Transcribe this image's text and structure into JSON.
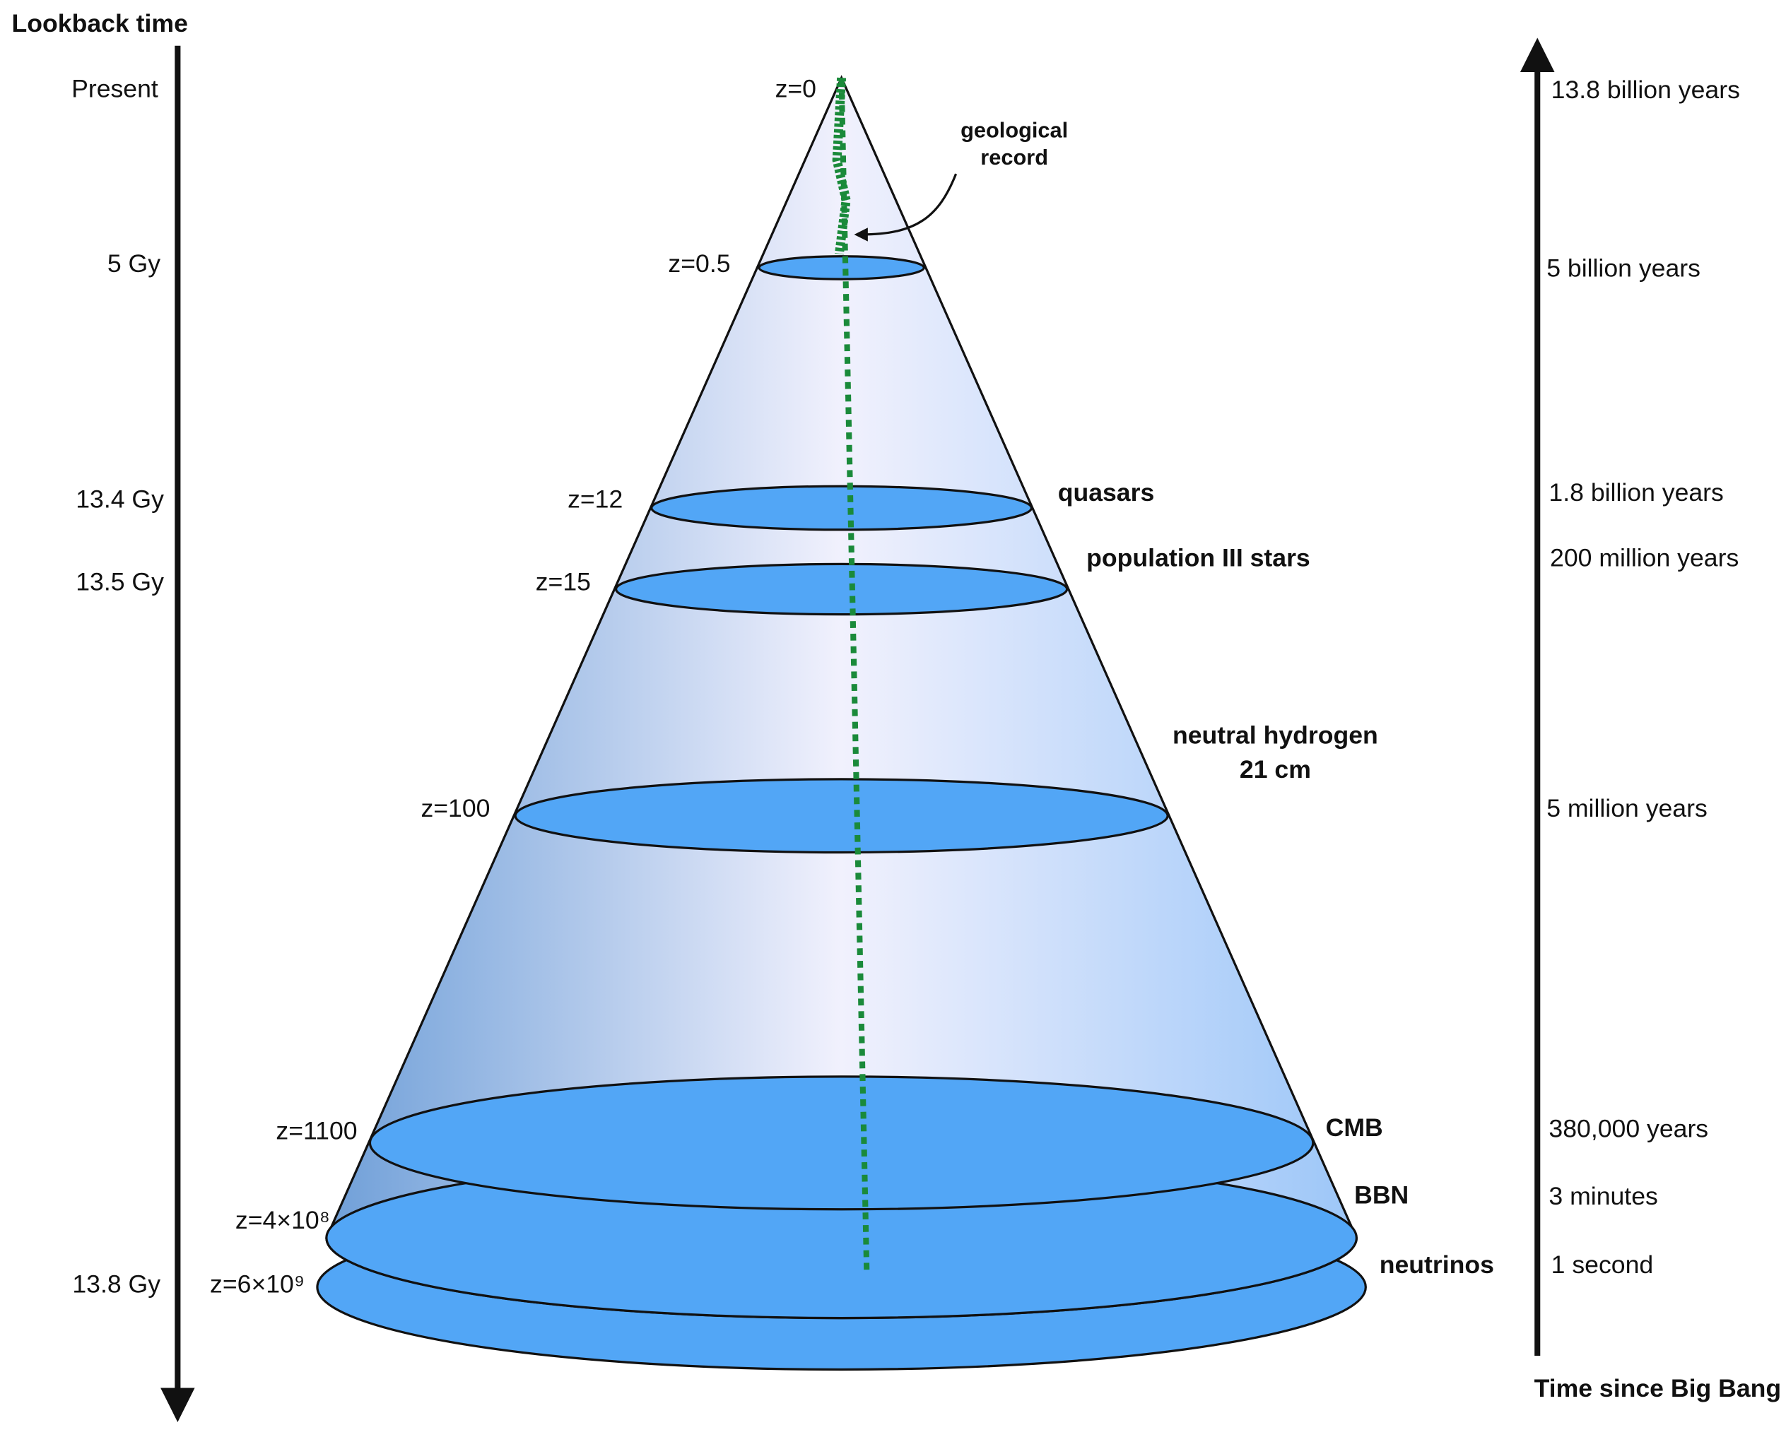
{
  "left_axis": {
    "title": "Lookback time",
    "labels": [
      "Present",
      "5 Gy",
      "13.4 Gy",
      "13.5 Gy",
      "13.8 Gy"
    ]
  },
  "redshifts": [
    "z=0",
    "z=0.5",
    "z=12",
    "z=15",
    "z=100",
    "z=1100",
    "z=4×10⁸",
    "z=6×10⁹"
  ],
  "annotation": [
    "geological",
    "record"
  ],
  "features": [
    "quasars",
    "population III stars",
    "neutral hydrogen",
    "21 cm",
    "CMB",
    "BBN",
    "neutrinos"
  ],
  "right_axis": {
    "title": "Time since Big Bang",
    "labels": [
      "13.8 billion years",
      "5 billion years",
      "1.8 billion years",
      "200 million years",
      "5 million years",
      "380,000 years",
      "3 minutes",
      "1 second"
    ]
  }
}
